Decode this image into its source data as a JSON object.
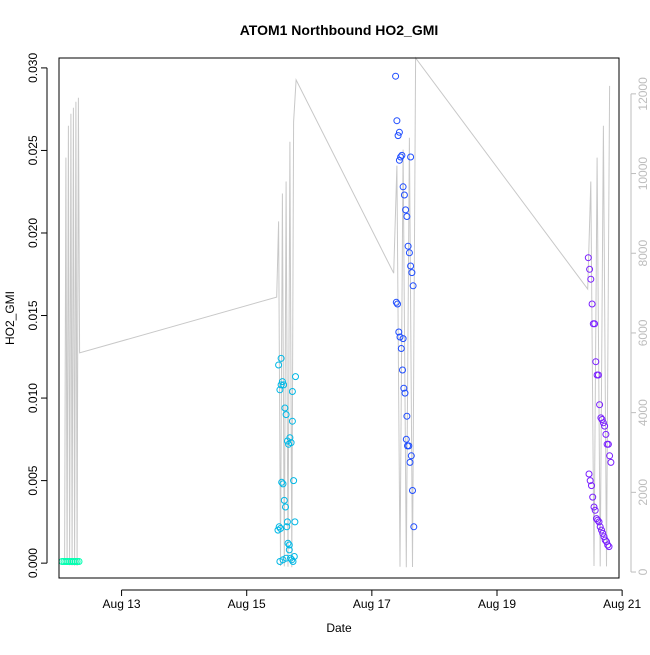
{
  "chart_data": {
    "type": "scatter",
    "title": "ATOM1 Northbound HO2_GMI",
    "xlabel": "Date",
    "ylabel": "HO2_GMI",
    "x_unit": "day of August",
    "xlim": [
      12.0,
      20.95
    ],
    "ylim": [
      -0.0009,
      0.0306
    ],
    "y2lim": [
      -150,
      12900
    ],
    "grid": false,
    "legend": "none",
    "colors": {
      "secondary_line": "#c8c8c8",
      "axis": "#000000",
      "right_axis": "#bdbdbd",
      "points": [
        "#00ffb0",
        "#00b8e6",
        "#1f4dff",
        "#7a1fff"
      ]
    },
    "x_ticks": [
      {
        "value": 13,
        "label": "Aug 13"
      },
      {
        "value": 15,
        "label": "Aug 15"
      },
      {
        "value": 17,
        "label": "Aug 17"
      },
      {
        "value": 19,
        "label": "Aug 19"
      },
      {
        "value": 21,
        "label": "Aug 21"
      }
    ],
    "y_ticks": [
      {
        "value": 0.0,
        "label": "0.000"
      },
      {
        "value": 0.005,
        "label": "0.005"
      },
      {
        "value": 0.01,
        "label": "0.010"
      },
      {
        "value": 0.015,
        "label": "0.015"
      },
      {
        "value": 0.02,
        "label": "0.020"
      },
      {
        "value": 0.025,
        "label": "0.025"
      },
      {
        "value": 0.03,
        "label": "0.030"
      }
    ],
    "y2_ticks": [
      {
        "value": 0,
        "label": "0"
      },
      {
        "value": 2000,
        "label": "2000"
      },
      {
        "value": 4000,
        "label": "4000"
      },
      {
        "value": 6000,
        "label": "6000"
      },
      {
        "value": 8000,
        "label": "8000"
      },
      {
        "value": 10000,
        "label": "10000"
      },
      {
        "value": 12000,
        "label": "12000"
      }
    ],
    "secondary_series": {
      "type": "line",
      "x": [
        12.09,
        12.11,
        12.13,
        12.15,
        12.17,
        12.19,
        12.21,
        12.23,
        12.25,
        12.27,
        12.29,
        12.31,
        12.33,
        15.48,
        15.51,
        15.54,
        15.57,
        15.6,
        15.63,
        15.66,
        15.69,
        15.72,
        15.75,
        15.79,
        17.35,
        17.4,
        17.45,
        17.5,
        17.55,
        17.6,
        17.65,
        17.7,
        20.45,
        20.5,
        20.55,
        20.6,
        20.65,
        20.7,
        20.75,
        20.8
      ],
      "y": [
        230,
        10400,
        180,
        11200,
        170,
        11500,
        165,
        11650,
        160,
        11800,
        155,
        11900,
        5500,
        6900,
        8800,
        150,
        9500,
        140,
        9800,
        130,
        10800,
        120,
        11300,
        12350,
        7500,
        10200,
        130,
        10600,
        120,
        10900,
        125,
        12900,
        7100,
        9800,
        150,
        10400,
        140,
        11200,
        140,
        12200
      ]
    },
    "series": [
      {
        "x": [
          12.05,
          12.08,
          12.11,
          12.14,
          12.17,
          12.2,
          12.23,
          12.26,
          12.29,
          12.32
        ],
        "y": [
          0.0001,
          0.0001,
          0.0001,
          0.0001,
          0.0001,
          0.0001,
          0.0001,
          0.0001,
          0.0001,
          0.0001
        ],
        "color": "#00ffb0"
      },
      {
        "x": [
          15.51,
          15.53,
          15.55,
          15.57,
          15.59,
          15.61,
          15.63,
          15.65,
          15.67,
          15.69,
          15.71,
          15.73,
          15.75,
          15.77,
          15.5,
          15.52,
          15.54,
          15.56,
          15.58,
          15.6,
          15.62,
          15.64,
          15.66,
          15.68,
          15.7,
          15.72,
          15.74,
          15.76,
          15.53,
          15.58,
          15.63,
          15.68,
          15.73,
          15.78,
          15.55,
          15.65
        ],
        "y": [
          0.012,
          0.0105,
          0.0124,
          0.011,
          0.0108,
          0.0094,
          0.009,
          0.0074,
          0.0072,
          0.0076,
          0.0073,
          0.0086,
          0.005,
          0.0025,
          0.002,
          0.0022,
          0.0021,
          0.0049,
          0.0048,
          0.0038,
          0.0034,
          0.0022,
          0.0012,
          0.0008,
          0.0003,
          0.0002,
          0.0001,
          0.0004,
          0.0001,
          0.0002,
          0.0003,
          0.0011,
          0.0104,
          0.0113,
          0.0108,
          0.0025
        ],
        "color": "#00b8e6"
      },
      {
        "x": [
          17.38,
          17.4,
          17.42,
          17.44,
          17.46,
          17.48,
          17.5,
          17.52,
          17.54,
          17.56,
          17.58,
          17.6,
          17.62,
          17.64,
          17.66,
          17.39,
          17.41,
          17.43,
          17.45,
          17.47,
          17.49,
          17.51,
          17.53,
          17.55,
          17.57,
          17.59,
          17.61,
          17.63,
          17.65,
          17.67,
          17.44,
          17.5,
          17.56,
          17.62
        ],
        "y": [
          0.0295,
          0.0268,
          0.0259,
          0.0261,
          0.0246,
          0.0247,
          0.0228,
          0.0223,
          0.0214,
          0.021,
          0.0192,
          0.0188,
          0.018,
          0.0176,
          0.0168,
          0.0158,
          0.0157,
          0.014,
          0.0137,
          0.013,
          0.0117,
          0.0106,
          0.0103,
          0.0075,
          0.0071,
          0.0071,
          0.0061,
          0.0065,
          0.0044,
          0.0022,
          0.0244,
          0.0136,
          0.0089,
          0.0246
        ],
        "color": "#1f4dff"
      },
      {
        "x": [
          20.46,
          20.48,
          20.5,
          20.52,
          20.54,
          20.56,
          20.58,
          20.6,
          20.62,
          20.64,
          20.66,
          20.68,
          20.7,
          20.72,
          20.74,
          20.76,
          20.78,
          20.8,
          20.82,
          20.47,
          20.49,
          20.51,
          20.53,
          20.55,
          20.57,
          20.59,
          20.61,
          20.63,
          20.65,
          20.67,
          20.69,
          20.71,
          20.73,
          20.75,
          20.77,
          20.79
        ],
        "y": [
          0.0185,
          0.0178,
          0.0172,
          0.0157,
          0.0145,
          0.0145,
          0.0122,
          0.0114,
          0.0114,
          0.0096,
          0.0088,
          0.0087,
          0.0085,
          0.0083,
          0.0078,
          0.0072,
          0.0072,
          0.0065,
          0.0061,
          0.0054,
          0.005,
          0.0047,
          0.004,
          0.0034,
          0.0032,
          0.0027,
          0.0026,
          0.0025,
          0.0022,
          0.002,
          0.0018,
          0.0016,
          0.0014,
          0.0013,
          0.0011,
          0.001
        ],
        "color": "#7a1fff"
      }
    ]
  }
}
